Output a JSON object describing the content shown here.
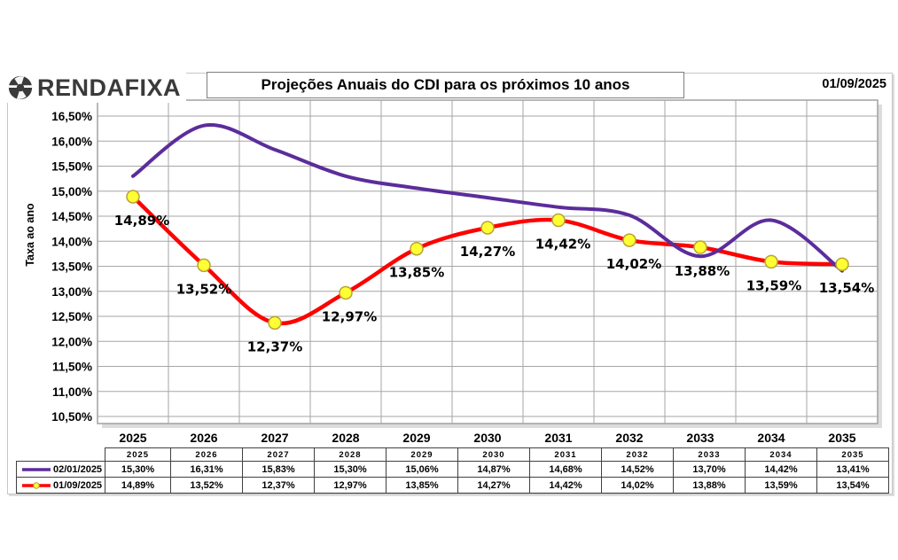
{
  "logo": {
    "text": "RENDAFIXA",
    "icon": "rendafixa-circle-logo",
    "color": "#3a3a3a"
  },
  "header": {
    "title": "Projeções Anuais do CDI para os próximos 10 anos",
    "date": "01/09/2025"
  },
  "chart_data": {
    "type": "line",
    "title": "Projeções Anuais do CDI para os próximos 10 anos",
    "xlabel": "",
    "ylabel": "Taxa ao ano",
    "ylim": [
      10.5,
      16.5
    ],
    "grid": true,
    "legend_position": "bottom-table",
    "categories": [
      "2025",
      "2026",
      "2027",
      "2028",
      "2029",
      "2030",
      "2031",
      "2032",
      "2033",
      "2034",
      "2035"
    ],
    "y_ticks": [
      "16,50%",
      "16,00%",
      "15,50%",
      "15,00%",
      "14,50%",
      "14,00%",
      "13,50%",
      "13,00%",
      "12,50%",
      "12,00%",
      "11,50%",
      "11,00%",
      "10,50%"
    ],
    "series": [
      {
        "name": "02/01/2025",
        "color": "#5b2d9b",
        "smooth": true,
        "markers": false,
        "values": [
          15.3,
          16.31,
          15.83,
          15.3,
          15.06,
          14.87,
          14.68,
          14.52,
          13.7,
          14.42,
          13.41
        ]
      },
      {
        "name": "01/09/2025",
        "color": "#ff0000",
        "smooth": true,
        "markers": true,
        "marker_fill": "#ffff33",
        "marker_stroke": "#b8a233",
        "values": [
          14.89,
          13.52,
          12.37,
          12.97,
          13.85,
          14.27,
          14.42,
          14.02,
          13.88,
          13.59,
          13.54
        ],
        "point_labels": [
          "14,89%",
          "13,52%",
          "12,37%",
          "12,97%",
          "13,85%",
          "14,27%",
          "14,42%",
          "14,02%",
          "13,88%",
          "13,59%",
          "13,54%"
        ]
      }
    ]
  },
  "table": {
    "years": [
      "2025",
      "2026",
      "2027",
      "2028",
      "2029",
      "2030",
      "2031",
      "2032",
      "2033",
      "2034",
      "2035"
    ],
    "rows": [
      {
        "name": "02/01/2025",
        "color": "#5b2d9b",
        "marker": false,
        "values": [
          "15,30%",
          "16,31%",
          "15,83%",
          "15,30%",
          "15,06%",
          "14,87%",
          "14,68%",
          "14,52%",
          "13,70%",
          "14,42%",
          "13,41%"
        ]
      },
      {
        "name": "01/09/2025",
        "color": "#ff0000",
        "marker": true,
        "values": [
          "14,89%",
          "13,52%",
          "12,37%",
          "12,97%",
          "13,85%",
          "14,27%",
          "14,42%",
          "14,02%",
          "13,88%",
          "13,59%",
          "13,54%"
        ]
      }
    ]
  },
  "colors": {
    "gridline": "#a6a6a6",
    "plot_border": "#a0a0a0",
    "table_border": "#404040",
    "shadow": "#dcdcdc",
    "text": "#000000"
  }
}
